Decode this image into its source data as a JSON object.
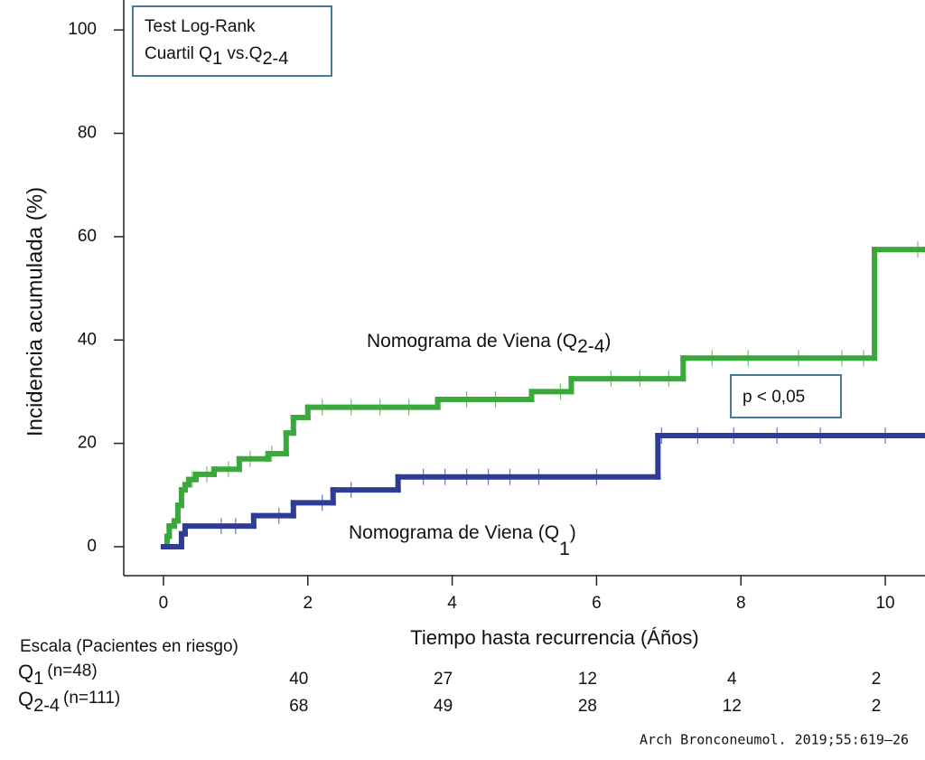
{
  "chart_data": {
    "type": "step",
    "x_label": "Tiempo hasta recurrencia (Áños)",
    "y_label": "Incidencia acumulada (%)",
    "xlim": [
      -0.55,
      10.55
    ],
    "ylim": [
      -5.6,
      105.8
    ],
    "xticks": [
      0,
      2,
      4,
      6,
      8,
      10
    ],
    "yticks": [
      0,
      20,
      40,
      60,
      80,
      100
    ],
    "series": [
      {
        "name": "Nomograma de Viena (Q",
        "name_sub": "2-4",
        "name_end": ")",
        "color": "#3aa83a",
        "x": [
          0,
          0.05,
          0.08,
          0.15,
          0.2,
          0.25,
          0.3,
          0.35,
          0.45,
          0.7,
          1.05,
          1.45,
          1.7,
          1.8,
          2.0,
          3.8,
          5.1,
          5.65,
          7.2,
          9.85,
          10.55
        ],
        "values": [
          0,
          2,
          4,
          5,
          8,
          11,
          12,
          13,
          14,
          15,
          17,
          18,
          22,
          25,
          27,
          28.5,
          30,
          32.5,
          36.5,
          57.5,
          57.5
        ],
        "censored_x": [
          0.4,
          0.6,
          0.9,
          1.2,
          1.5,
          2.2,
          2.6,
          3.0,
          3.4,
          4.2,
          4.6,
          5.5,
          6.2,
          6.6,
          7.0,
          7.6,
          8.1,
          8.8,
          9.4,
          9.7,
          10.45
        ]
      },
      {
        "name": "Nomograma de Viena (Q",
        "name_sub": "1",
        "name_end": ")",
        "color": "#2f3c96",
        "x": [
          0,
          0.25,
          0.3,
          1.25,
          1.8,
          2.35,
          3.25,
          6.85,
          10.55
        ],
        "values": [
          0,
          2.5,
          4,
          6,
          8.5,
          11,
          13.5,
          21.5,
          21.5
        ],
        "censored_x": [
          0.8,
          1.0,
          1.6,
          2.2,
          2.6,
          3.6,
          3.9,
          4.2,
          4.5,
          4.8,
          5.2,
          6.0,
          6.9,
          7.4,
          7.9,
          8.5,
          9.1,
          10.0
        ]
      }
    ],
    "annotations": {
      "test_title": "Test Log-Rank",
      "test_line": [
        "Cuartil Q",
        "1",
        " vs.Q",
        "2-4"
      ],
      "p_value": "p < 0,05"
    },
    "risk_table": {
      "title": "Escala (Pacientes en riesgo)",
      "rows": [
        {
          "label": "Q",
          "sub": "1",
          "n": "(n=48)",
          "counts": [
            40,
            27,
            12,
            4,
            2
          ]
        },
        {
          "label": "Q",
          "sub": "2-4",
          "n": "(n=111)",
          "counts": [
            68,
            49,
            28,
            12,
            2
          ]
        }
      ]
    },
    "source": "Arch Bronconeumol. 2019;55:619–26"
  }
}
